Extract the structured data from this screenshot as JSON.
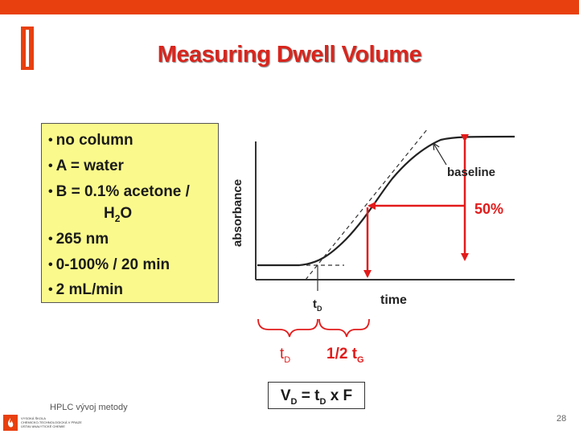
{
  "slide": {
    "title": "Measuring Dwell Volume",
    "page_number": "28",
    "footer": "HPLC vývoj metody",
    "logo_lines": [
      "VYSOKÁ ŠKOLA",
      "CHEMICKO-TECHNOLOGICKÁ V PRAZE",
      "ÚSTAV ANALYTICKÉ CHEMIE"
    ],
    "colors": {
      "accent": "#e8400f",
      "title": "#d7261e",
      "box": "#fafa8c",
      "arrow": "#e21b1b"
    }
  },
  "conditions": {
    "items": [
      "no column",
      "A = water",
      "B = 0.1% acetone /",
      "265 nm",
      "0-100% / 20 min",
      "2 mL/min"
    ],
    "continuation_base": "H",
    "continuation_sub": "2",
    "continuation_tail": "O"
  },
  "plot": {
    "y_axis_label": "absorbance",
    "x_axis_label": "time",
    "baseline_label": "baseline",
    "percent_label": "50%",
    "td_label_base": "t",
    "td_label_sub": "D"
  },
  "brace_labels": {
    "td_base": "t",
    "td_sub": "D",
    "half_tg_base": "1/2 t",
    "half_tg_sub": "G"
  },
  "formula": {
    "vd_base": "V",
    "vd_sub": "D",
    "eq": " = t",
    "td_sub": "D",
    "tail": " x F"
  }
}
